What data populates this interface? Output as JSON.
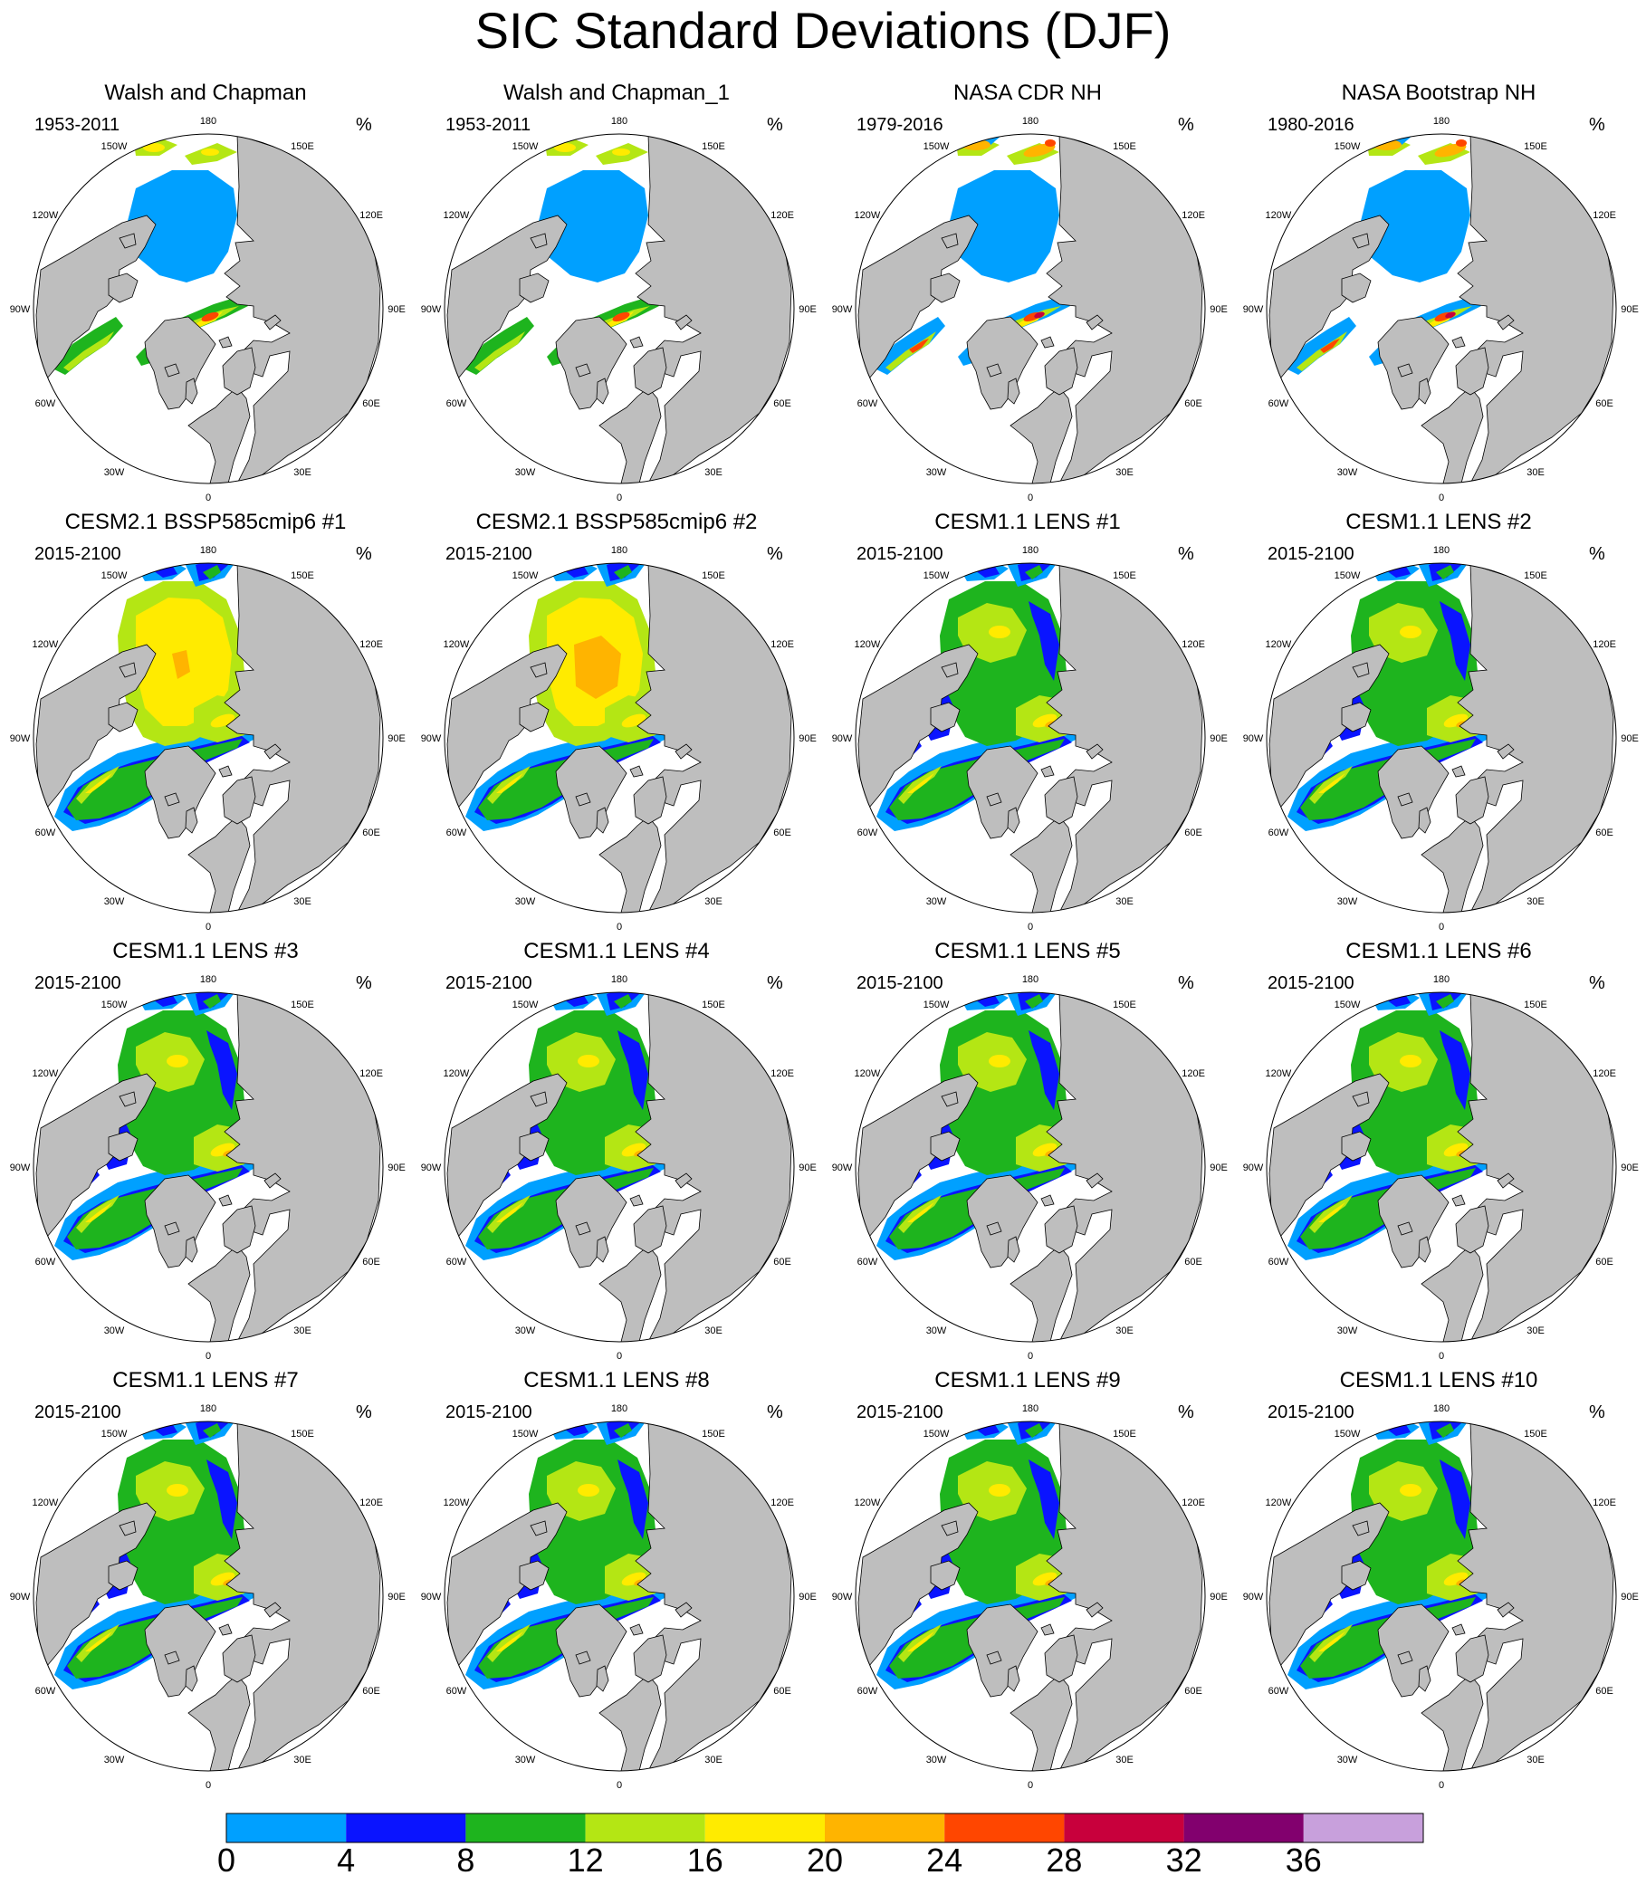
{
  "title": "SIC Standard Deviations (DJF)",
  "units": "%",
  "longitude_labels": [
    "180",
    "150E",
    "120E",
    "90E",
    "60E",
    "30E",
    "0",
    "30W",
    "60W",
    "90W",
    "120W",
    "150W"
  ],
  "panels": [
    {
      "title": "Walsh and Chapman",
      "period": "1953-2011",
      "pattern": "obs_wc"
    },
    {
      "title": "Walsh and Chapman_1",
      "period": "1953-2011",
      "pattern": "obs_wc"
    },
    {
      "title": "NASA CDR NH",
      "period": "1979-2016",
      "pattern": "obs_nasa"
    },
    {
      "title": "NASA Bootstrap NH",
      "period": "1980-2016",
      "pattern": "obs_nasa"
    },
    {
      "title": "CESM2.1 BSSP585cmip6 #1",
      "period": "2015-2100",
      "pattern": "cesm2"
    },
    {
      "title": "CESM2.1 BSSP585cmip6 #2",
      "period": "2015-2100",
      "pattern": "cesm2b"
    },
    {
      "title": "CESM1.1 LENS #1",
      "period": "2015-2100",
      "pattern": "lens"
    },
    {
      "title": "CESM1.1 LENS #2",
      "period": "2015-2100",
      "pattern": "lens"
    },
    {
      "title": "CESM1.1 LENS #3",
      "period": "2015-2100",
      "pattern": "lens"
    },
    {
      "title": "CESM1.1 LENS #4",
      "period": "2015-2100",
      "pattern": "lens"
    },
    {
      "title": "CESM1.1 LENS #5",
      "period": "2015-2100",
      "pattern": "lens"
    },
    {
      "title": "CESM1.1 LENS #6",
      "period": "2015-2100",
      "pattern": "lens"
    },
    {
      "title": "CESM1.1 LENS #7",
      "period": "2015-2100",
      "pattern": "lens"
    },
    {
      "title": "CESM1.1 LENS #8",
      "period": "2015-2100",
      "pattern": "lens"
    },
    {
      "title": "CESM1.1 LENS #9",
      "period": "2015-2100",
      "pattern": "lens"
    },
    {
      "title": "CESM1.1 LENS #10",
      "period": "2015-2100",
      "pattern": "lens"
    }
  ],
  "colorbar": {
    "levels": [
      "0",
      "4",
      "8",
      "12",
      "16",
      "20",
      "24",
      "28",
      "32",
      "36"
    ],
    "colors": [
      "#00a0ff",
      "#0a14ff",
      "#1eb41e",
      "#b4e614",
      "#ffeb00",
      "#ffb400",
      "#ff4600",
      "#c8003c",
      "#82006e",
      "#c8a0dc"
    ]
  },
  "map_colors": {
    "land": "#bebebe",
    "ocean": "#ffffff",
    "coastline": "#000000"
  }
}
